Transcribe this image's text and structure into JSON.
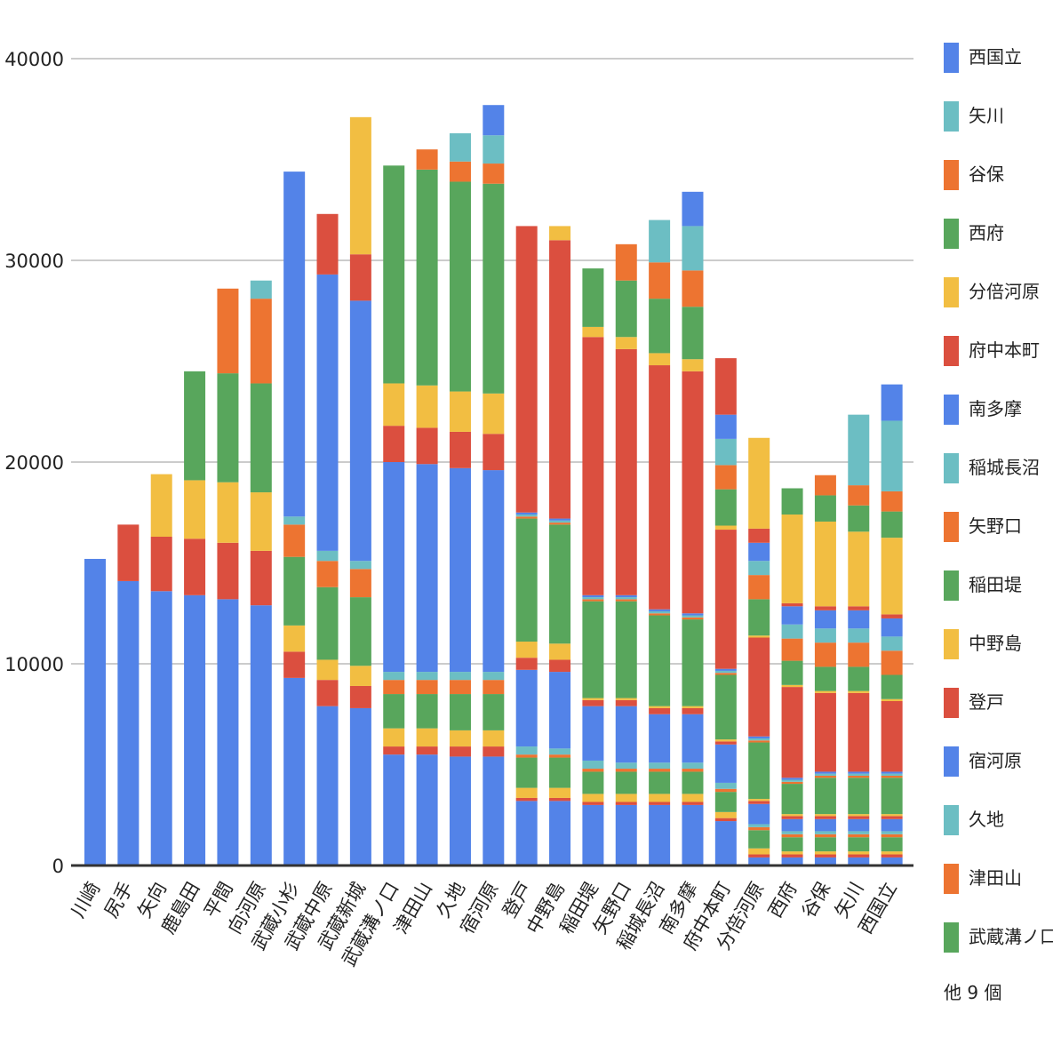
{
  "chart_data": {
    "type": "bar",
    "stacked": true,
    "categories": [
      "川崎",
      "尻手",
      "矢向",
      "鹿島田",
      "平間",
      "向河原",
      "武蔵小杉",
      "武蔵中原",
      "武蔵新城",
      "武蔵溝ノ口",
      "津田山",
      "久地",
      "宿河原",
      "登戸",
      "中野島",
      "稲田堤",
      "矢野口",
      "稲城長沼",
      "南多摩",
      "府中本町",
      "分倍河原",
      "西府",
      "谷保",
      "矢川",
      "西国立"
    ],
    "ylim": [
      0,
      40000
    ],
    "yticks": [
      0,
      10000,
      20000,
      30000,
      40000
    ],
    "ytick_labels": [
      "0",
      "10000",
      "20000",
      "30000",
      "40000"
    ],
    "grid": true,
    "legend_position": "right",
    "legend_more": "他 9 個",
    "series": [
      {
        "name": "川崎",
        "color": "#5383e8",
        "values": [
          15200,
          14100,
          13600,
          13400,
          13200,
          12900,
          9300,
          7900,
          7800,
          5500,
          5500,
          5400,
          5400,
          3200,
          3200,
          3000,
          3000,
          3000,
          3000,
          2200,
          400,
          400,
          400,
          400,
          400
        ]
      },
      {
        "name": "尻手",
        "color": "#db4f3f",
        "values": [
          0,
          2800,
          2700,
          2800,
          2800,
          2700,
          1300,
          1300,
          1100,
          400,
          400,
          500,
          500,
          150,
          150,
          150,
          150,
          150,
          150,
          150,
          150,
          150,
          150,
          150,
          150
        ]
      },
      {
        "name": "矢向",
        "color": "#f2be42",
        "values": [
          0,
          0,
          3100,
          2900,
          3000,
          2900,
          1300,
          1000,
          1000,
          900,
          900,
          800,
          800,
          500,
          500,
          400,
          400,
          400,
          400,
          300,
          300,
          150,
          150,
          150,
          150
        ]
      },
      {
        "name": "鹿島田",
        "color": "#58a65c",
        "values": [
          0,
          0,
          0,
          5400,
          5400,
          5400,
          3400,
          3600,
          3400,
          1700,
          1700,
          1800,
          1800,
          1500,
          1500,
          1100,
          1100,
          1100,
          1100,
          1000,
          900,
          700,
          700,
          700,
          700
        ]
      },
      {
        "name": "平間",
        "color": "#ed7431",
        "values": [
          0,
          0,
          0,
          0,
          4200,
          4200,
          1600,
          1300,
          1400,
          700,
          700,
          700,
          700,
          150,
          150,
          150,
          150,
          150,
          150,
          150,
          150,
          150,
          150,
          150,
          150
        ]
      },
      {
        "name": "向河原",
        "color": "#6cbec3",
        "values": [
          0,
          0,
          0,
          0,
          0,
          900,
          400,
          500,
          400,
          400,
          400,
          400,
          400,
          400,
          300,
          400,
          300,
          300,
          300,
          300,
          150,
          150,
          150,
          150,
          150
        ]
      },
      {
        "name": "武蔵小杉",
        "color": "#5383e8",
        "values": [
          0,
          0,
          0,
          0,
          0,
          0,
          17100,
          13700,
          12900,
          10400,
          10300,
          10100,
          10000,
          3800,
          3800,
          2700,
          2800,
          2400,
          2400,
          1900,
          1000,
          600,
          600,
          600,
          600
        ]
      },
      {
        "name": "武蔵中原",
        "color": "#db4f3f",
        "values": [
          0,
          0,
          0,
          0,
          0,
          0,
          0,
          3000,
          2300,
          1800,
          1800,
          1800,
          1800,
          600,
          600,
          300,
          300,
          300,
          300,
          150,
          150,
          150,
          150,
          150,
          150
        ]
      },
      {
        "name": "武蔵新城",
        "color": "#f2be42",
        "values": [
          0,
          0,
          0,
          0,
          0,
          0,
          0,
          0,
          6800,
          2100,
          2100,
          2000,
          2000,
          800,
          800,
          100,
          100,
          100,
          100,
          100,
          100,
          100,
          100,
          100,
          100
        ]
      },
      {
        "name": "武蔵溝ノ口",
        "color": "#58a65c",
        "values": [
          0,
          0,
          0,
          0,
          0,
          0,
          0,
          0,
          0,
          10800,
          10700,
          10400,
          10400,
          6100,
          5900,
          4800,
          4800,
          4500,
          4300,
          3200,
          2800,
          1500,
          1800,
          1800,
          1800
        ]
      },
      {
        "name": "津田山",
        "color": "#ed7431",
        "values": [
          0,
          0,
          0,
          0,
          0,
          0,
          0,
          0,
          0,
          0,
          1000,
          1000,
          1000,
          100,
          100,
          100,
          100,
          100,
          100,
          100,
          100,
          100,
          100,
          100,
          100
        ]
      },
      {
        "name": "久地",
        "color": "#6cbec3",
        "values": [
          0,
          0,
          0,
          0,
          0,
          0,
          0,
          0,
          0,
          0,
          0,
          1400,
          1400,
          100,
          100,
          100,
          100,
          100,
          100,
          100,
          100,
          100,
          100,
          100,
          100
        ]
      },
      {
        "name": "宿河原",
        "color": "#5383e8",
        "values": [
          0,
          0,
          0,
          0,
          0,
          0,
          0,
          0,
          0,
          0,
          0,
          0,
          1500,
          100,
          100,
          100,
          100,
          100,
          100,
          100,
          100,
          100,
          100,
          100,
          100
        ]
      },
      {
        "name": "登戸",
        "color": "#db4f3f",
        "values": [
          0,
          0,
          0,
          0,
          0,
          0,
          0,
          0,
          0,
          0,
          0,
          0,
          0,
          14200,
          13800,
          12800,
          12200,
          12100,
          12000,
          6900,
          4900,
          4500,
          3900,
          3900,
          3500
        ]
      },
      {
        "name": "中野島",
        "color": "#f2be42",
        "values": [
          0,
          0,
          0,
          0,
          0,
          0,
          0,
          0,
          0,
          0,
          0,
          0,
          0,
          0,
          700,
          500,
          600,
          600,
          600,
          200,
          100,
          100,
          100,
          100,
          100
        ]
      },
      {
        "name": "稲田堤",
        "color": "#58a65c",
        "values": [
          0,
          0,
          0,
          0,
          0,
          0,
          0,
          0,
          0,
          0,
          0,
          0,
          0,
          0,
          0,
          2900,
          2800,
          2700,
          2600,
          1800,
          1800,
          1200,
          1200,
          1200,
          1200
        ]
      },
      {
        "name": "矢野口",
        "color": "#ed7431",
        "values": [
          0,
          0,
          0,
          0,
          0,
          0,
          0,
          0,
          0,
          0,
          0,
          0,
          0,
          0,
          0,
          0,
          1800,
          1800,
          1800,
          1200,
          1200,
          1100,
          1200,
          1200,
          1200
        ]
      },
      {
        "name": "稲城長沼",
        "color": "#6cbec3",
        "values": [
          0,
          0,
          0,
          0,
          0,
          0,
          0,
          0,
          0,
          0,
          0,
          0,
          0,
          0,
          0,
          0,
          0,
          2100,
          2200,
          1300,
          700,
          700,
          700,
          700,
          700
        ]
      },
      {
        "name": "南多摩",
        "color": "#5383e8",
        "values": [
          0,
          0,
          0,
          0,
          0,
          0,
          0,
          0,
          0,
          0,
          0,
          0,
          0,
          0,
          0,
          0,
          0,
          0,
          1700,
          1200,
          900,
          900,
          900,
          900,
          900
        ]
      },
      {
        "name": "府中本町",
        "color": "#db4f3f",
        "values": [
          0,
          0,
          0,
          0,
          0,
          0,
          0,
          0,
          0,
          0,
          0,
          0,
          0,
          0,
          0,
          0,
          0,
          0,
          0,
          2800,
          700,
          150,
          200,
          200,
          200
        ]
      },
      {
        "name": "分倍河原",
        "color": "#f2be42",
        "values": [
          0,
          0,
          0,
          0,
          0,
          0,
          0,
          0,
          0,
          0,
          0,
          0,
          0,
          0,
          0,
          0,
          0,
          0,
          0,
          0,
          4500,
          4400,
          4200,
          3700,
          3800
        ]
      },
      {
        "name": "西府",
        "color": "#58a65c",
        "values": [
          0,
          0,
          0,
          0,
          0,
          0,
          0,
          0,
          0,
          0,
          0,
          0,
          0,
          0,
          0,
          0,
          0,
          0,
          0,
          0,
          0,
          1300,
          1300,
          1300,
          1300
        ]
      },
      {
        "name": "谷保",
        "color": "#ed7431",
        "values": [
          0,
          0,
          0,
          0,
          0,
          0,
          0,
          0,
          0,
          0,
          0,
          0,
          0,
          0,
          0,
          0,
          0,
          0,
          0,
          0,
          0,
          0,
          1000,
          1000,
          1000
        ]
      },
      {
        "name": "矢川",
        "color": "#6cbec3",
        "values": [
          0,
          0,
          0,
          0,
          0,
          0,
          0,
          0,
          0,
          0,
          0,
          0,
          0,
          0,
          0,
          0,
          0,
          0,
          0,
          0,
          0,
          0,
          0,
          3500,
          3500
        ]
      },
      {
        "name": "西国立",
        "color": "#5383e8",
        "values": [
          0,
          0,
          0,
          0,
          0,
          0,
          0,
          0,
          0,
          0,
          0,
          0,
          0,
          0,
          0,
          0,
          0,
          0,
          0,
          0,
          0,
          0,
          0,
          0,
          1800
        ]
      }
    ],
    "legend_entries": [
      {
        "name": "西国立",
        "color": "#5383e8"
      },
      {
        "name": "矢川",
        "color": "#6cbec3"
      },
      {
        "name": "谷保",
        "color": "#ed7431"
      },
      {
        "name": "西府",
        "color": "#58a65c"
      },
      {
        "name": "分倍河原",
        "color": "#f2be42"
      },
      {
        "name": "府中本町",
        "color": "#db4f3f"
      },
      {
        "name": "南多摩",
        "color": "#5383e8"
      },
      {
        "name": "稲城長沼",
        "color": "#6cbec3"
      },
      {
        "name": "矢野口",
        "color": "#ed7431"
      },
      {
        "name": "稲田堤",
        "color": "#58a65c"
      },
      {
        "name": "中野島",
        "color": "#f2be42"
      },
      {
        "name": "登戸",
        "color": "#db4f3f"
      },
      {
        "name": "宿河原",
        "color": "#5383e8"
      },
      {
        "name": "久地",
        "color": "#6cbec3"
      },
      {
        "name": "津田山",
        "color": "#ed7431"
      },
      {
        "name": "武蔵溝ノ口",
        "color": "#58a65c"
      }
    ]
  }
}
